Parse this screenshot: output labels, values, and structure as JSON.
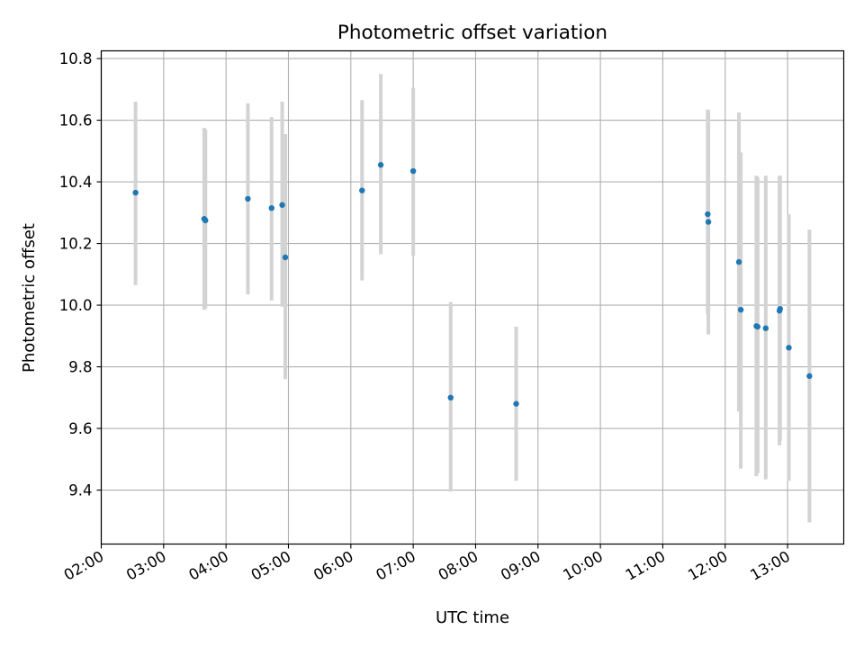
{
  "chart_data": {
    "type": "scatter",
    "title": "Photometric offset variation",
    "xlabel": "UTC time",
    "ylabel": "Photometric offset",
    "x_unit": "hours UTC",
    "xlim": [
      2.0,
      13.9
    ],
    "ylim": [
      9.225,
      10.825
    ],
    "x_ticks": [
      2,
      3,
      4,
      5,
      6,
      7,
      8,
      9,
      10,
      11,
      12,
      13
    ],
    "x_tick_labels": [
      "02:00",
      "03:00",
      "04:00",
      "05:00",
      "06:00",
      "07:00",
      "08:00",
      "09:00",
      "10:00",
      "11:00",
      "12:00",
      "13:00"
    ],
    "y_ticks": [
      9.4,
      9.6,
      9.8,
      10.0,
      10.2,
      10.4,
      10.6,
      10.8
    ],
    "y_tick_labels": [
      "9.4",
      "9.6",
      "9.8",
      "10.0",
      "10.2",
      "10.4",
      "10.6",
      "10.8"
    ],
    "grid": true,
    "legend": "none",
    "colors": {
      "point": "#1f77b4",
      "errorbar": "#d3d3d3",
      "grid": "#b0b0b0"
    },
    "points": [
      {
        "x": 2.55,
        "y": 10.365,
        "lo": 10.065,
        "hi": 10.66
      },
      {
        "x": 3.65,
        "y": 10.28,
        "lo": 9.985,
        "hi": 10.575
      },
      {
        "x": 3.67,
        "y": 10.275,
        "lo": 9.99,
        "hi": 10.57
      },
      {
        "x": 4.35,
        "y": 10.345,
        "lo": 10.035,
        "hi": 10.655
      },
      {
        "x": 4.73,
        "y": 10.315,
        "lo": 10.015,
        "hi": 10.61
      },
      {
        "x": 4.9,
        "y": 10.325,
        "lo": 9.995,
        "hi": 10.66
      },
      {
        "x": 4.95,
        "y": 10.155,
        "lo": 9.76,
        "hi": 10.555
      },
      {
        "x": 6.18,
        "y": 10.372,
        "lo": 10.08,
        "hi": 10.665
      },
      {
        "x": 6.48,
        "y": 10.455,
        "lo": 10.165,
        "hi": 10.75
      },
      {
        "x": 7.0,
        "y": 10.435,
        "lo": 10.16,
        "hi": 10.705
      },
      {
        "x": 7.6,
        "y": 9.7,
        "lo": 9.395,
        "hi": 10.01
      },
      {
        "x": 8.65,
        "y": 9.68,
        "lo": 9.43,
        "hi": 9.93
      },
      {
        "x": 11.72,
        "y": 10.295,
        "lo": 9.97,
        "hi": 10.635
      },
      {
        "x": 11.73,
        "y": 10.27,
        "lo": 9.905,
        "hi": 10.63
      },
      {
        "x": 12.22,
        "y": 10.14,
        "lo": 9.655,
        "hi": 10.625
      },
      {
        "x": 12.25,
        "y": 9.985,
        "lo": 9.47,
        "hi": 10.495
      },
      {
        "x": 12.5,
        "y": 9.932,
        "lo": 9.445,
        "hi": 10.42
      },
      {
        "x": 12.52,
        "y": 9.93,
        "lo": 9.455,
        "hi": 10.415
      },
      {
        "x": 12.65,
        "y": 9.925,
        "lo": 9.435,
        "hi": 10.42
      },
      {
        "x": 12.87,
        "y": 9.982,
        "lo": 9.545,
        "hi": 10.42
      },
      {
        "x": 12.88,
        "y": 9.988,
        "lo": 9.56,
        "hi": 10.42
      },
      {
        "x": 13.02,
        "y": 9.862,
        "lo": 9.43,
        "hi": 10.295
      },
      {
        "x": 13.35,
        "y": 9.77,
        "lo": 9.295,
        "hi": 10.245
      }
    ]
  }
}
